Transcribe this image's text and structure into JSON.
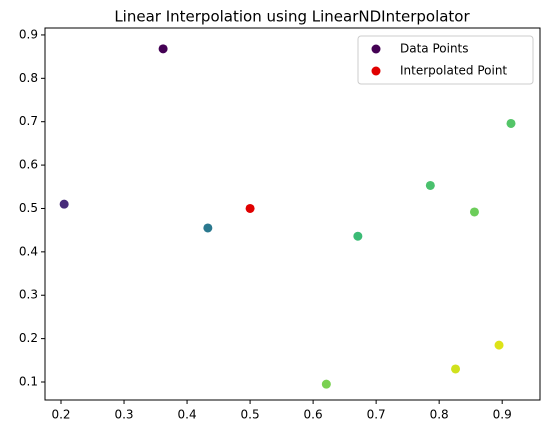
{
  "chart_data": {
    "type": "scatter",
    "title": "Linear Interpolation using LinearNDInterpolator",
    "series": [
      {
        "name": "Data Points",
        "color": "#440154",
        "x": [
          0.205,
          0.362,
          0.433,
          0.671,
          0.786,
          0.856,
          0.914,
          0.621,
          0.826,
          0.895
        ],
        "values": [
          0.51,
          0.868,
          0.455,
          0.436,
          0.553,
          0.492,
          0.696,
          0.095,
          0.13,
          0.185
        ],
        "colors": [
          "#472c7a",
          "#440154",
          "#2a788e",
          "#3bbb75",
          "#4ac16d",
          "#6ccd5a",
          "#54c568",
          "#7ad151",
          "#d0e11c",
          "#dde318"
        ]
      },
      {
        "name": "Interpolated Point",
        "color": "#e00000",
        "x": [
          0.5
        ],
        "values": [
          0.5
        ]
      }
    ],
    "xlim": [
      0.1746,
      0.96
    ],
    "ylim": [
      0.0585,
      0.916
    ],
    "xticks": [
      0.2,
      0.3,
      0.4,
      0.5,
      0.6,
      0.7,
      0.8,
      0.9
    ],
    "yticks": [
      0.1,
      0.2,
      0.3,
      0.4,
      0.5,
      0.6,
      0.7,
      0.8,
      0.9
    ],
    "legend": "upper right",
    "grid": false
  }
}
